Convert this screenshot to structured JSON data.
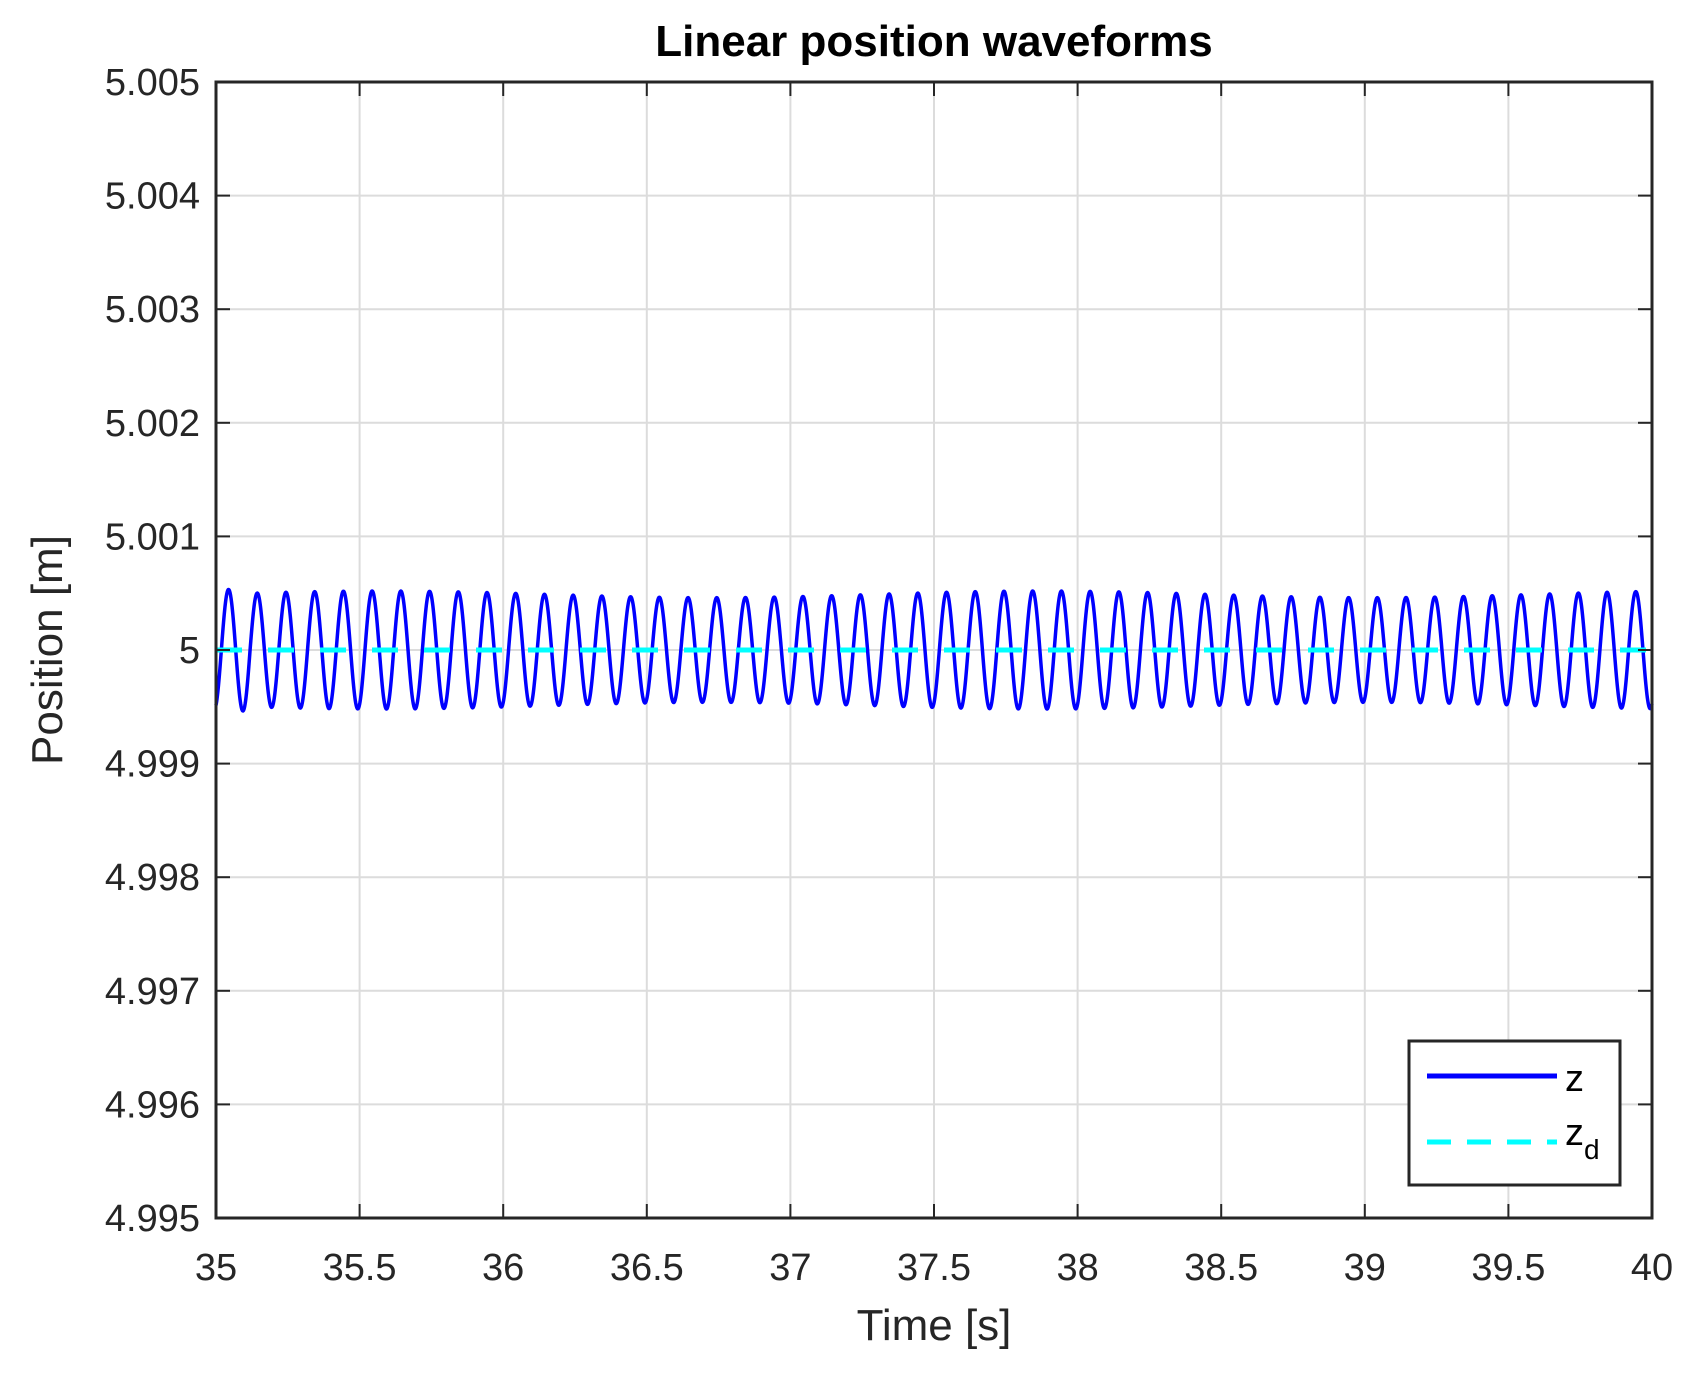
{
  "chart_data": {
    "type": "line",
    "title": "Linear position waveforms",
    "xlabel": "Time [s]",
    "ylabel": "Position [m]",
    "xlim": [
      35,
      40
    ],
    "ylim": [
      4.995,
      5.005
    ],
    "grid": true,
    "legend_location": "bottom-right",
    "x_ticks": [
      35,
      35.5,
      36,
      36.5,
      37,
      37.5,
      38,
      38.5,
      39,
      39.5,
      40
    ],
    "x_tick_labels": [
      "35",
      "35.5",
      "36",
      "36.5",
      "37",
      "37.5",
      "38",
      "38.5",
      "39",
      "39.5",
      "40"
    ],
    "y_ticks": [
      4.995,
      4.996,
      4.997,
      4.998,
      4.999,
      5,
      5.001,
      5.002,
      5.003,
      5.004,
      5.005
    ],
    "y_tick_labels": [
      "4.995",
      "4.996",
      "4.997",
      "4.998",
      "4.999",
      "5",
      "5.001",
      "5.002",
      "5.003",
      "5.004",
      "5.005"
    ],
    "series": [
      {
        "name": "z",
        "legend_main": "z",
        "legend_sub": "",
        "color": "#0000ff",
        "style": "solid",
        "signal": "sinusoid",
        "center": 5.0,
        "amplitude": 0.00049,
        "cycles": 50,
        "x_start": 35,
        "x_end": 40
      },
      {
        "name": "z_d",
        "legend_main": "z",
        "legend_sub": "d",
        "color": "#00ffff",
        "style": "dashed",
        "signal": "constant",
        "value": 5.0,
        "x_start": 35,
        "x_end": 40
      }
    ]
  },
  "colors": {
    "axes": "#262626",
    "grid": "#dcdcdc",
    "background": "#ffffff"
  }
}
